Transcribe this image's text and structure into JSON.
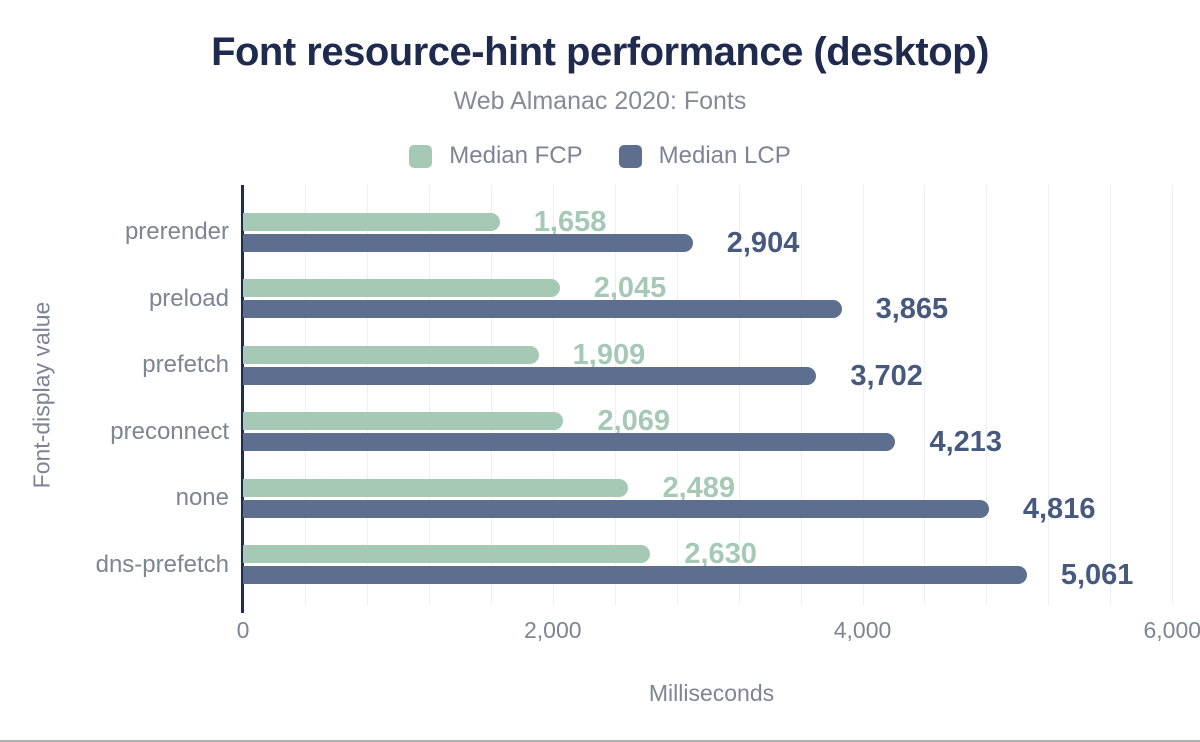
{
  "chart_data": {
    "type": "bar",
    "orientation": "horizontal",
    "title": "Font resource-hint performance (desktop)",
    "subtitle": "Web Almanac 2020: Fonts",
    "xlabel": "Milliseconds",
    "ylabel": "Font-display value",
    "categories": [
      "prerender",
      "preload",
      "prefetch",
      "preconnect",
      "none",
      "dns-prefetch"
    ],
    "series": [
      {
        "name": "Median FCP",
        "color": "#a6c9b6",
        "label_color": "#a6c9b6",
        "values": [
          1658,
          2045,
          1909,
          2069,
          2489,
          2630
        ],
        "labels": [
          "1,658",
          "2,045",
          "1,909",
          "2,069",
          "2,489",
          "2,630"
        ]
      },
      {
        "name": "Median LCP",
        "color": "#5d6e8e",
        "label_color": "#47597e",
        "values": [
          2904,
          3865,
          3702,
          4213,
          4816,
          5061
        ],
        "labels": [
          "2,904",
          "3,865",
          "3,702",
          "4,213",
          "4,816",
          "5,061"
        ]
      }
    ],
    "xlim": [
      0,
      6050
    ],
    "xticks": [
      {
        "value": 0,
        "label": "0"
      },
      {
        "value": 2000,
        "label": "2,000"
      },
      {
        "value": 4000,
        "label": "4,000"
      },
      {
        "value": 6000,
        "label": "6,000"
      }
    ],
    "gridline_step": 400,
    "grid": "vertical",
    "legend_position": "top",
    "colors": {
      "title": "#1f2b4e",
      "text_muted": "#7d8593",
      "axis_line": "#1b2e52",
      "gridline": "#edeff2",
      "background": "#ffffff"
    }
  }
}
